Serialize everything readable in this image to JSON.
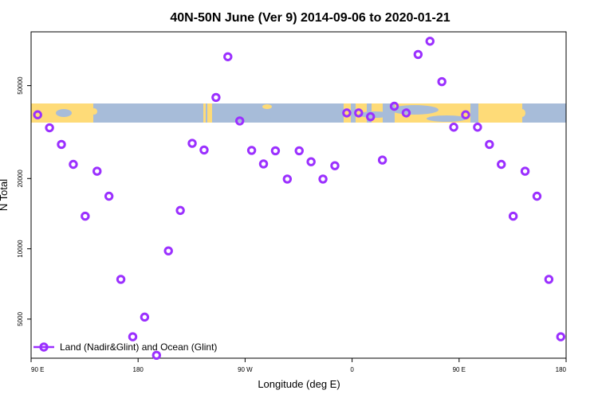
{
  "chart_data": {
    "type": "scatter",
    "title": "40N-50N June (Ver 9)   2014-09-06 to 2020-01-21",
    "xlabel": "Longitude (deg E)",
    "ylabel": "N Total",
    "xlim": [
      90,
      540
    ],
    "ylim_log": [
      3400,
      85000
    ],
    "y_scale": "log",
    "x_ticks": [
      {
        "value": 90,
        "label": "90 E"
      },
      {
        "value": 180,
        "label": "180"
      },
      {
        "value": 270,
        "label": "90 W"
      },
      {
        "value": 360,
        "label": "0"
      },
      {
        "value": 450,
        "label": "90 E"
      },
      {
        "value": 540,
        "label": "180"
      }
    ],
    "y_ticks": [
      {
        "value": 5000,
        "label": "5000"
      },
      {
        "value": 10000,
        "label": "10000"
      },
      {
        "value": 20000,
        "label": "20000"
      },
      {
        "value": 50000,
        "label": "50000"
      }
    ],
    "legend": {
      "position": "bottom-left",
      "label": "Land (Nadir&Glint) and Ocean (Glint)"
    },
    "series": [
      {
        "name": "Land (Nadir&Glint) and Ocean (Glint)",
        "color": "#9b30ff",
        "x": [
          95.5,
          105.5,
          115.5,
          125.5,
          135.5,
          145.5,
          155.5,
          165.5,
          175.5,
          185.5,
          195.5,
          205.5,
          215.5,
          225.5,
          235.5,
          245.5,
          255.5,
          265.5,
          275.5,
          285.5,
          295.5,
          305.5,
          315.5,
          325.5,
          335.5,
          345.5,
          355.5,
          365.5,
          375.5,
          385.5,
          395.5,
          405.5,
          415.5,
          425.5,
          435.5,
          445.5,
          455.5,
          465.5,
          475.5,
          485.5,
          495.5,
          505.5,
          515.5,
          525.5,
          535.5
        ],
        "y": [
          37500,
          33000,
          28000,
          23000,
          13800,
          21500,
          16800,
          7400,
          4200,
          5100,
          3500,
          9800,
          14600,
          28300,
          26500,
          44500,
          66500,
          35300,
          26400,
          23100,
          26300,
          19900,
          26300,
          23600,
          19900,
          22700,
          38200,
          38200,
          36800,
          24000,
          40800,
          38200,
          68000,
          77500,
          52000,
          33200,
          37500,
          33200,
          28000,
          23000,
          13800,
          21500,
          16800,
          7400,
          4200
        ]
      }
    ]
  },
  "map_band": {
    "ocean_color": "#a7bcd9",
    "land_color": "#fedb78"
  }
}
